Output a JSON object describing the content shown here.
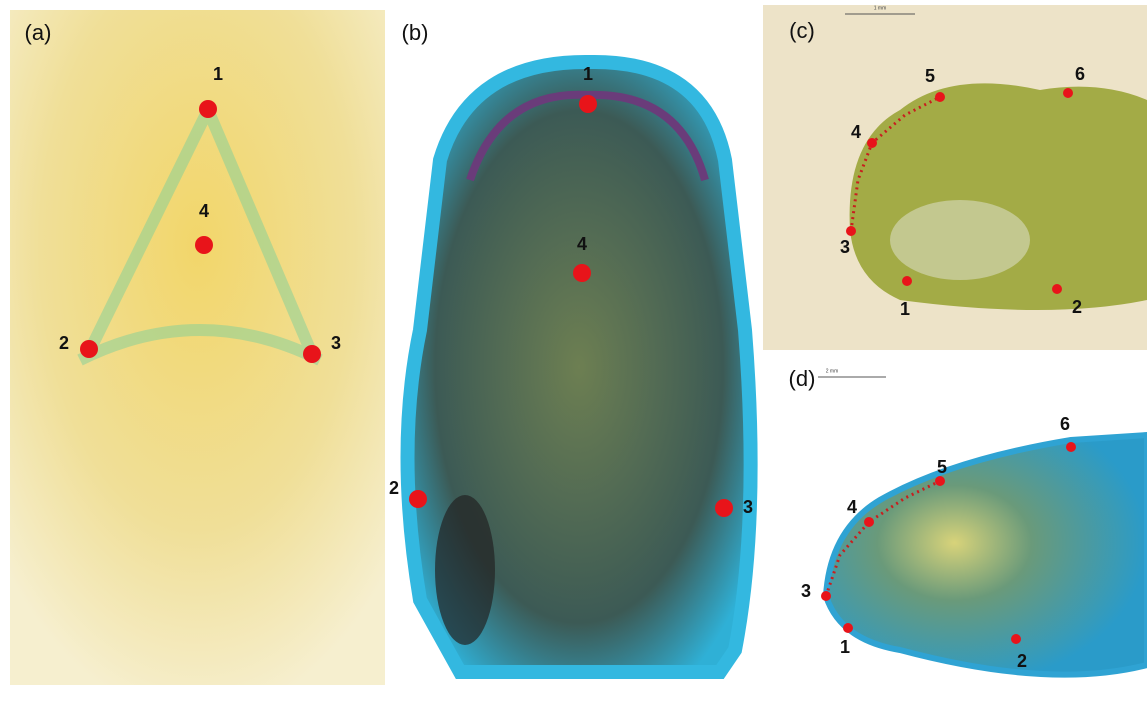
{
  "panels": [
    {
      "label": "(a)",
      "landmarks": [
        "1",
        "4",
        "2",
        "3"
      ]
    },
    {
      "label": "(b)",
      "landmarks": [
        "1",
        "4",
        "2",
        "3"
      ]
    },
    {
      "label": "(c)",
      "scale_bar": "1 mm",
      "landmarks": [
        "5",
        "6",
        "4",
        "3",
        "1",
        "2"
      ]
    },
    {
      "label": "(d)",
      "scale_bar": "2 mm",
      "landmarks": [
        "6",
        "5",
        "4",
        "3",
        "1",
        "2"
      ]
    }
  ]
}
